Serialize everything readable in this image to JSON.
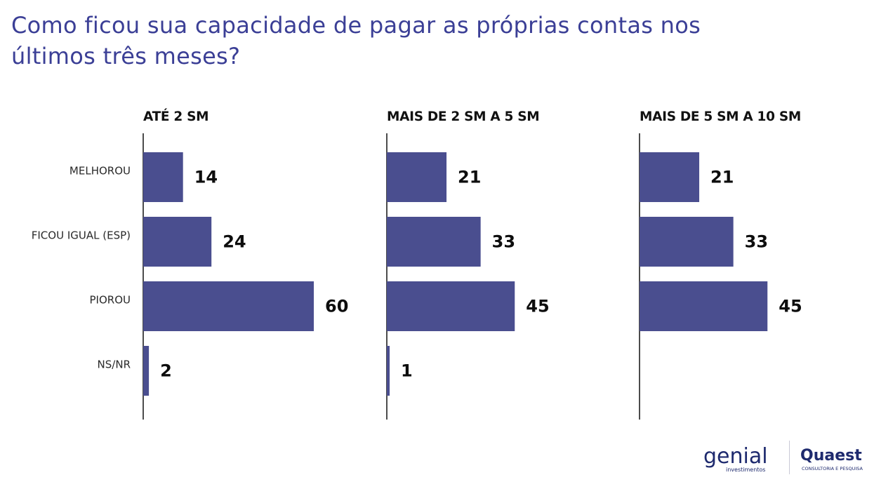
{
  "title_line1": "Como ficou sua capacidade de pagar as próprias contas nos",
  "title_line2": "últimos três meses?",
  "chart_data": {
    "type": "bar",
    "orientation": "horizontal",
    "categories": [
      "MELHOROU",
      "FICOU IGUAL (ESP)",
      "PIOROU",
      "NS/NR"
    ],
    "bar_color": "#4a4e8f",
    "panels": [
      {
        "title": "ATÉ 2 SM",
        "values": [
          14,
          24,
          60,
          2
        ]
      },
      {
        "title": "MAIS DE 2 SM A 5 SM",
        "values": [
          21,
          33,
          45,
          1
        ]
      },
      {
        "title": "MAIS DE 5 SM A 10 SM",
        "values": [
          21,
          33,
          45,
          null
        ]
      }
    ]
  },
  "logos": {
    "genial_text": "genial",
    "genial_sub": "investimentos",
    "quaest_text": "Quaest",
    "quaest_sub": "CONSULTORIA E PESQUISA",
    "color": "#1e2a6e"
  }
}
